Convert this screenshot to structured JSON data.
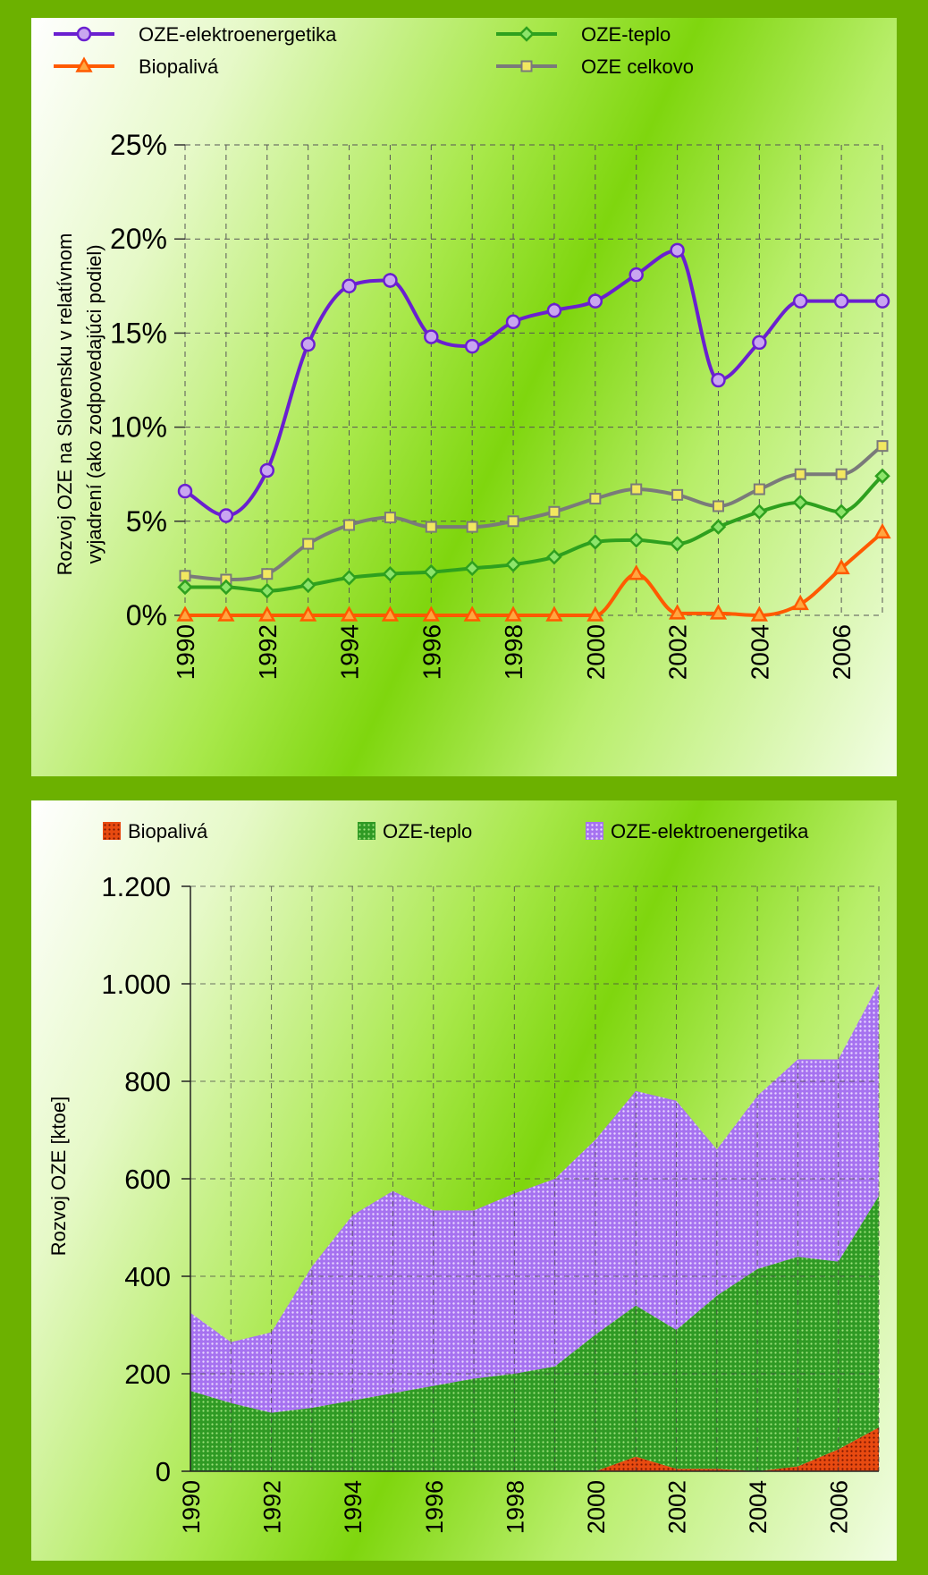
{
  "charts": [
    {
      "type": "line",
      "xlabel": "",
      "ylabel_line1": "Rozvoj OZE na Slovensku v relatívnom",
      "ylabel_line2": "vyjadrení (ako zodpovedajúci podiel)",
      "ylim": [
        0,
        25
      ],
      "xlim": [
        1990,
        2007
      ],
      "y_ticks": [
        {
          "value": 0,
          "label": "0%"
        },
        {
          "value": 5,
          "label": "5%"
        },
        {
          "value": 10,
          "label": "10%"
        },
        {
          "value": 15,
          "label": "15%"
        },
        {
          "value": 20,
          "label": "20%"
        },
        {
          "value": 25,
          "label": "25%"
        }
      ],
      "x_ticks": [
        {
          "value": 1990,
          "label": "1990"
        },
        {
          "value": 1992,
          "label": "1992"
        },
        {
          "value": 1994,
          "label": "1994"
        },
        {
          "value": 1996,
          "label": "1996"
        },
        {
          "value": 1998,
          "label": "1998"
        },
        {
          "value": 2000,
          "label": "2000"
        },
        {
          "value": 2002,
          "label": "2002"
        },
        {
          "value": 2004,
          "label": "2004"
        },
        {
          "value": 2006,
          "label": "2006"
        }
      ],
      "grid_x": [
        1990,
        1991,
        1992,
        1993,
        1994,
        1995,
        1996,
        1997,
        1998,
        1999,
        2000,
        2001,
        2002,
        2003,
        2004,
        2005,
        2006,
        2007
      ],
      "x": [
        1990,
        1991,
        1992,
        1993,
        1994,
        1995,
        1996,
        1997,
        1998,
        1999,
        2000,
        2001,
        2002,
        2003,
        2004,
        2005,
        2006,
        2007
      ],
      "series": [
        {
          "name": "OZE-elektroenergetika",
          "color": "#6a1fd0",
          "marker": "circle",
          "marker_fill": "#c9a6f0",
          "values": [
            6.6,
            5.3,
            7.7,
            14.4,
            17.5,
            17.8,
            14.8,
            14.3,
            15.6,
            16.2,
            16.7,
            18.1,
            19.4,
            12.5,
            14.5,
            16.7,
            16.7,
            16.7
          ]
        },
        {
          "name": "OZE-teplo",
          "color": "#2ea01e",
          "marker": "diamond",
          "marker_fill": "#8de56a",
          "values": [
            1.5,
            1.5,
            1.3,
            1.6,
            2.0,
            2.2,
            2.3,
            2.5,
            2.7,
            3.1,
            3.9,
            4.0,
            3.8,
            4.7,
            5.5,
            6.0,
            5.5,
            7.4
          ]
        },
        {
          "name": "Biopalivá",
          "color": "#ff5a00",
          "marker": "triangle",
          "marker_fill": "#ffa640",
          "values": [
            0,
            0,
            0,
            0,
            0,
            0,
            0,
            0,
            0,
            0,
            0,
            2.2,
            0.1,
            0.1,
            0.0,
            0.6,
            2.5,
            4.4
          ]
        },
        {
          "name": "OZE celkovo",
          "color": "#7a7a7a",
          "marker": "square",
          "marker_fill": "#f2e860",
          "values": [
            2.1,
            1.9,
            2.2,
            3.8,
            4.8,
            5.2,
            4.7,
            4.7,
            5.0,
            5.5,
            6.2,
            6.7,
            6.4,
            5.8,
            6.7,
            7.5,
            7.5,
            9.0
          ]
        }
      ]
    },
    {
      "type": "area",
      "xlabel": "",
      "ylabel": "Rozvoj OZE [ktoe]",
      "ylim": [
        0,
        1200
      ],
      "xlim": [
        1990,
        2007
      ],
      "stacked": true,
      "y_ticks": [
        {
          "value": 0,
          "label": "0"
        },
        {
          "value": 200,
          "label": "200"
        },
        {
          "value": 400,
          "label": "400"
        },
        {
          "value": 600,
          "label": "600"
        },
        {
          "value": 800,
          "label": "800"
        },
        {
          "value": 1000,
          "label": "1.000"
        },
        {
          "value": 1200,
          "label": "1.200"
        }
      ],
      "x_ticks": [
        {
          "value": 1990,
          "label": "1990"
        },
        {
          "value": 1992,
          "label": "1992"
        },
        {
          "value": 1994,
          "label": "1994"
        },
        {
          "value": 1996,
          "label": "1996"
        },
        {
          "value": 1998,
          "label": "1998"
        },
        {
          "value": 2000,
          "label": "2000"
        },
        {
          "value": 2002,
          "label": "2002"
        },
        {
          "value": 2004,
          "label": "2004"
        },
        {
          "value": 2006,
          "label": "2006"
        }
      ],
      "grid_x": [
        1990,
        1991,
        1992,
        1993,
        1994,
        1995,
        1996,
        1997,
        1998,
        1999,
        2000,
        2001,
        2002,
        2003,
        2004,
        2005,
        2006,
        2007
      ],
      "x": [
        1990,
        1991,
        1992,
        1993,
        1994,
        1995,
        1996,
        1997,
        1998,
        1999,
        2000,
        2001,
        2002,
        2003,
        2004,
        2005,
        2006,
        2007
      ],
      "series": [
        {
          "name": "Biopalivá",
          "color": "#e84a10",
          "dot_color": "#7a1500",
          "values": [
            0,
            0,
            0,
            0,
            0,
            0,
            0,
            0,
            0,
            0,
            0,
            30,
            5,
            5,
            0,
            10,
            45,
            90
          ]
        },
        {
          "name": "OZE-teplo",
          "color": "#2f9a24",
          "dot_color": "#9ee27c",
          "values": [
            165,
            140,
            120,
            130,
            145,
            160,
            175,
            190,
            200,
            215,
            280,
            310,
            285,
            355,
            415,
            430,
            385,
            475
          ]
        },
        {
          "name": "OZE-elektroenergetika",
          "color": "#a672f0",
          "dot_color": "#e8d8ff",
          "values": [
            160,
            125,
            165,
            290,
            380,
            415,
            360,
            345,
            370,
            385,
            400,
            440,
            470,
            300,
            355,
            405,
            415,
            435
          ]
        }
      ]
    }
  ]
}
